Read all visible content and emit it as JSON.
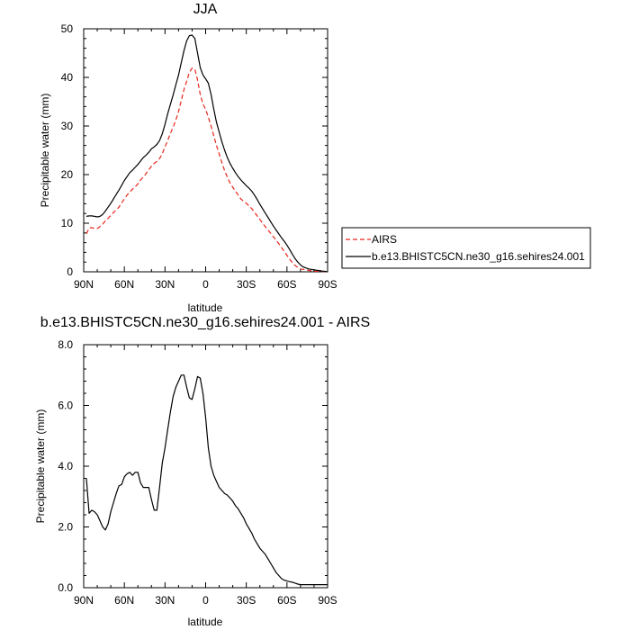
{
  "chart_data": [
    {
      "type": "line",
      "title": "JJA",
      "xlabel": "latitude",
      "ylabel": "Precipitable water (mm)",
      "xlim": [
        90,
        -90
      ],
      "ylim": [
        0,
        50
      ],
      "xticks": [
        90,
        60,
        30,
        0,
        -30,
        -60,
        -90
      ],
      "xtick_labels": [
        "90N",
        "60N",
        "30N",
        "0",
        "30S",
        "60S",
        "90S"
      ],
      "yticks": [
        0,
        10,
        20,
        30,
        40,
        50
      ],
      "ytick_labels": [
        "0",
        "10",
        "20",
        "30",
        "40",
        "50"
      ],
      "legend": {
        "placement": "right"
      },
      "series": [
        {
          "name": "AIRS",
          "color": "#e8261c",
          "dash": "dashed",
          "x": [
            88,
            86,
            84,
            82,
            80,
            78,
            76,
            74,
            72,
            70,
            68,
            66,
            64,
            62,
            60,
            58,
            56,
            54,
            52,
            50,
            48,
            46,
            44,
            42,
            40,
            38,
            36,
            34,
            32,
            30,
            28,
            26,
            24,
            22,
            20,
            18,
            16,
            14,
            12,
            10,
            8,
            6,
            4,
            2,
            0,
            -2,
            -4,
            -6,
            -8,
            -10,
            -12,
            -14,
            -16,
            -18,
            -20,
            -22,
            -24,
            -26,
            -28,
            -30,
            -32,
            -34,
            -36,
            -38,
            -40,
            -42,
            -44,
            -46,
            -48,
            -50,
            -52,
            -54,
            -56,
            -58,
            -60,
            -62,
            -64,
            -66,
            -68,
            -70,
            -72,
            -74,
            -76,
            -78,
            -80,
            -82,
            -84,
            -86,
            -88,
            -90
          ],
          "values": [
            7.8,
            9.0,
            9.1,
            8.9,
            8.9,
            9.3,
            9.8,
            10.5,
            11.0,
            11.6,
            12.2,
            12.7,
            13.3,
            14.2,
            15.0,
            15.8,
            16.4,
            17.0,
            17.5,
            18.1,
            18.9,
            19.5,
            20.2,
            21.0,
            21.7,
            22.3,
            22.7,
            23.3,
            24.3,
            25.7,
            27.0,
            28.5,
            29.8,
            31.2,
            33.0,
            35.2,
            37.5,
            39.2,
            41.0,
            41.9,
            41.7,
            39.5,
            36.5,
            34.5,
            33.4,
            31.8,
            30.0,
            28.0,
            26.0,
            24.2,
            22.4,
            20.8,
            19.5,
            18.3,
            17.4,
            16.6,
            15.8,
            15.0,
            14.5,
            14.1,
            13.6,
            13.0,
            12.3,
            11.5,
            10.8,
            10.0,
            9.3,
            8.6,
            7.9,
            7.2,
            6.5,
            5.8,
            5.0,
            4.2,
            3.4,
            2.6,
            1.9,
            1.3,
            0.9,
            0.6,
            0.5,
            0.4,
            0.3,
            0.2,
            0.15,
            0.1,
            0.1,
            0.05,
            0.05,
            0.0
          ]
        },
        {
          "name": "b.e13.BHISTC5CN.ne30_g16.sehires24.001",
          "color": "#000000",
          "dash": "solid",
          "x": [
            88,
            86,
            84,
            82,
            80,
            78,
            76,
            74,
            72,
            70,
            68,
            66,
            64,
            62,
            60,
            58,
            56,
            54,
            52,
            50,
            48,
            46,
            44,
            42,
            40,
            38,
            36,
            34,
            32,
            30,
            28,
            26,
            24,
            22,
            20,
            18,
            16,
            14,
            12,
            10,
            8,
            6,
            4,
            2,
            0,
            -2,
            -4,
            -6,
            -8,
            -10,
            -12,
            -14,
            -16,
            -18,
            -20,
            -22,
            -24,
            -26,
            -28,
            -30,
            -32,
            -34,
            -36,
            -38,
            -40,
            -42,
            -44,
            -46,
            -48,
            -50,
            -52,
            -54,
            -56,
            -58,
            -60,
            -62,
            -64,
            -66,
            -68,
            -70,
            -72,
            -74,
            -76,
            -78,
            -80,
            -82,
            -84,
            -86,
            -88,
            -90
          ],
          "values": [
            11.4,
            11.5,
            11.5,
            11.4,
            11.3,
            11.4,
            11.8,
            12.5,
            13.3,
            14.1,
            15.0,
            15.9,
            16.8,
            17.8,
            18.8,
            19.6,
            20.4,
            20.9,
            21.5,
            22.1,
            22.8,
            23.5,
            24.0,
            24.6,
            25.3,
            25.7,
            26.2,
            27.0,
            28.4,
            30.3,
            32.5,
            34.5,
            36.4,
            38.5,
            40.5,
            43.0,
            45.5,
            47.5,
            48.6,
            48.7,
            48.0,
            45.0,
            42.0,
            40.5,
            39.7,
            38.8,
            36.5,
            33.5,
            30.8,
            28.7,
            26.7,
            25.0,
            23.5,
            22.3,
            21.3,
            20.4,
            19.6,
            18.9,
            18.3,
            17.7,
            17.2,
            16.6,
            15.8,
            14.9,
            13.9,
            13.0,
            12.1,
            11.2,
            10.3,
            9.4,
            8.6,
            7.8,
            7.0,
            6.3,
            5.5,
            4.6,
            3.6,
            2.7,
            2.0,
            1.4,
            1.0,
            0.8,
            0.6,
            0.5,
            0.4,
            0.3,
            0.25,
            0.15,
            0.1,
            0.0
          ]
        }
      ]
    },
    {
      "type": "line",
      "title": "b.e13.BHISTC5CN.ne30_g16.sehires24.001 - AIRS",
      "xlabel": "latitude",
      "ylabel": "Precipitable water (mm)",
      "xlim": [
        90,
        -90
      ],
      "ylim": [
        0,
        8
      ],
      "xticks": [
        90,
        60,
        30,
        0,
        -30,
        -60,
        -90
      ],
      "xtick_labels": [
        "90N",
        "60N",
        "30N",
        "0",
        "30S",
        "60S",
        "90S"
      ],
      "yticks": [
        0,
        2,
        4,
        6,
        8
      ],
      "ytick_labels": [
        "0.0",
        "2.0",
        "4.0",
        "6.0",
        "8.0"
      ],
      "series": [
        {
          "color": "#000000",
          "dash": "solid",
          "x": [
            88,
            86,
            84,
            82,
            80,
            78,
            76,
            74,
            72,
            70,
            68,
            66,
            64,
            62,
            60,
            58,
            56,
            54,
            52,
            50,
            48,
            46,
            44,
            42,
            40,
            38,
            36,
            34,
            32,
            30,
            28,
            26,
            24,
            22,
            20,
            18,
            16,
            14,
            12,
            10,
            8,
            6,
            4,
            2,
            0,
            -2,
            -4,
            -6,
            -8,
            -10,
            -12,
            -14,
            -16,
            -18,
            -20,
            -22,
            -24,
            -26,
            -28,
            -30,
            -32,
            -34,
            -36,
            -38,
            -40,
            -42,
            -44,
            -46,
            -48,
            -50,
            -52,
            -54,
            -56,
            -58,
            -60,
            -62,
            -64,
            -66,
            -68,
            -70,
            -72,
            -74,
            -76,
            -78,
            -80,
            -82,
            -84,
            -86,
            -88,
            -90
          ],
          "values": [
            3.6,
            2.45,
            2.55,
            2.5,
            2.4,
            2.2,
            2.0,
            1.9,
            2.1,
            2.5,
            2.8,
            3.1,
            3.35,
            3.4,
            3.65,
            3.75,
            3.8,
            3.7,
            3.8,
            3.8,
            3.45,
            3.3,
            3.3,
            3.3,
            2.9,
            2.55,
            2.55,
            3.3,
            4.1,
            4.6,
            5.2,
            5.8,
            6.3,
            6.6,
            6.8,
            7.0,
            7.0,
            6.6,
            6.25,
            6.2,
            6.55,
            6.95,
            6.9,
            6.4,
            5.6,
            4.6,
            4.0,
            3.7,
            3.5,
            3.3,
            3.2,
            3.1,
            3.05,
            2.95,
            2.85,
            2.7,
            2.6,
            2.45,
            2.3,
            2.1,
            1.95,
            1.8,
            1.6,
            1.45,
            1.3,
            1.2,
            1.1,
            0.95,
            0.8,
            0.65,
            0.5,
            0.4,
            0.3,
            0.25,
            0.22,
            0.2,
            0.18,
            0.15,
            0.12,
            0.1,
            0.1,
            0.1,
            0.1,
            0.1,
            0.1,
            0.1,
            0.1,
            0.1,
            0.1,
            0.1
          ]
        }
      ]
    }
  ]
}
